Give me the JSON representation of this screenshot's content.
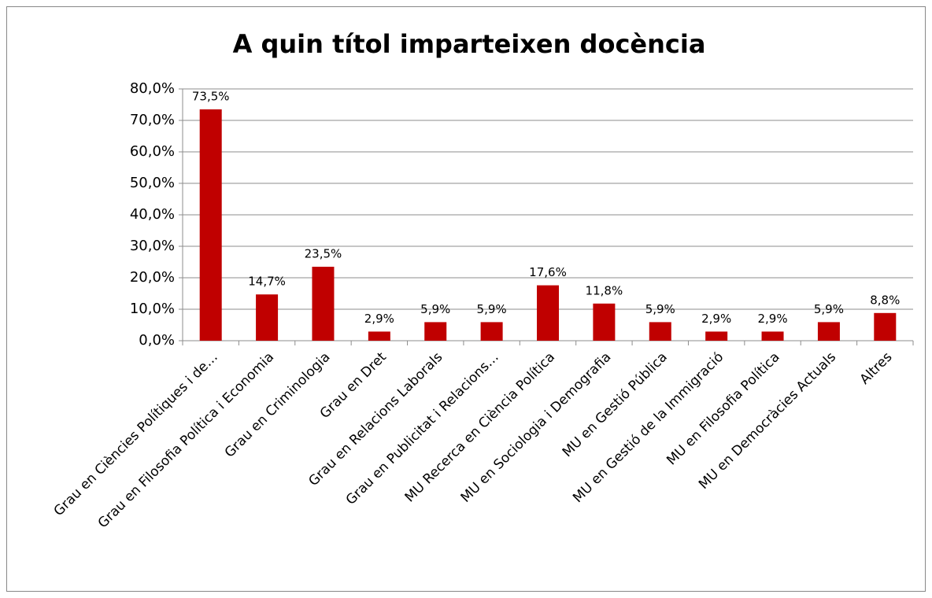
{
  "chart_data": {
    "type": "bar",
    "title": "A quin títol imparteixen docència",
    "categories": [
      "Grau en Ciències Polítiques i de…",
      "Grau en Filosofia Política i Economia",
      "Grau en Criminologia",
      "Grau en Dret",
      "Grau en Relacions Laborals",
      "Grau en Publicitat i Relacions…",
      "MU Recerca en Ciència Política",
      "MU en Sociologia i Demografia",
      "MU en Gestió Pública",
      "MU en Gestió de la Immigració",
      "MU en Filosofia Política",
      "MU en Democràcies Actuals",
      "Altres"
    ],
    "values": [
      73.5,
      14.7,
      23.5,
      2.9,
      5.9,
      5.9,
      17.6,
      11.8,
      5.9,
      2.9,
      2.9,
      5.9,
      8.8
    ],
    "value_labels": [
      "73,5%",
      "14,7%",
      "23,5%",
      "2,9%",
      "5,9%",
      "5,9%",
      "17,6%",
      "11,8%",
      "5,9%",
      "2,9%",
      "2,9%",
      "5,9%",
      "8,8%"
    ],
    "color": "#c00000",
    "ylim": [
      0,
      80
    ],
    "yticks": [
      {
        "value": 0,
        "label": "0,0%"
      },
      {
        "value": 10,
        "label": "10,0%"
      },
      {
        "value": 20,
        "label": "20,0%"
      },
      {
        "value": 30,
        "label": "30,0%"
      },
      {
        "value": 40,
        "label": "40,0%"
      },
      {
        "value": 50,
        "label": "50,0%"
      },
      {
        "value": 60,
        "label": "60,0%"
      },
      {
        "value": 70,
        "label": "70,0%"
      },
      {
        "value": 80,
        "label": "80,0%"
      }
    ],
    "grid": true
  }
}
